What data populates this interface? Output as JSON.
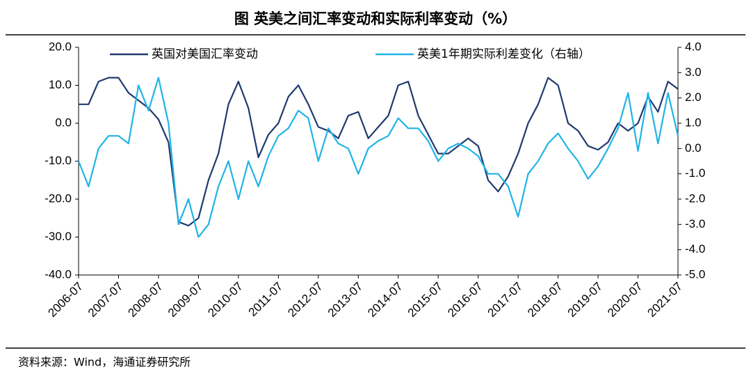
{
  "chart_data": {
    "type": "line",
    "title": "图  英美之间汇率变动和实际利率变动（%）",
    "source": "资料来源：Wind，海通证券研究所",
    "legend": "top",
    "x": [
      "2006-07",
      "2006-10",
      "2007-01",
      "2007-04",
      "2007-07",
      "2007-10",
      "2008-01",
      "2008-04",
      "2008-07",
      "2008-10",
      "2009-01",
      "2009-04",
      "2009-07",
      "2009-10",
      "2010-01",
      "2010-04",
      "2010-07",
      "2010-10",
      "2011-01",
      "2011-04",
      "2011-07",
      "2011-10",
      "2012-01",
      "2012-04",
      "2012-07",
      "2012-10",
      "2013-01",
      "2013-04",
      "2013-07",
      "2013-10",
      "2014-01",
      "2014-04",
      "2014-07",
      "2014-10",
      "2015-01",
      "2015-04",
      "2015-07",
      "2015-10",
      "2016-01",
      "2016-04",
      "2016-07",
      "2016-10",
      "2017-01",
      "2017-04",
      "2017-07",
      "2017-10",
      "2018-01",
      "2018-04",
      "2018-07",
      "2018-10",
      "2019-01",
      "2019-04",
      "2019-07",
      "2019-10",
      "2020-01",
      "2020-04",
      "2020-07",
      "2020-10",
      "2021-01",
      "2021-04",
      "2021-07"
    ],
    "xlim": [
      "2006-07",
      "2021-07"
    ],
    "xticks": [
      "2006-07",
      "2007-07",
      "2008-07",
      "2009-07",
      "2010-07",
      "2011-07",
      "2012-07",
      "2013-07",
      "2014-07",
      "2015-07",
      "2016-07",
      "2017-07",
      "2018-07",
      "2019-07",
      "2020-07",
      "2021-07"
    ],
    "ylim": [
      -40,
      20
    ],
    "yticks": [
      {
        "value": -40,
        "label": "-40.0"
      },
      {
        "value": -30,
        "label": "-30.0"
      },
      {
        "value": -20,
        "label": "-20.0"
      },
      {
        "value": -10,
        "label": "-10.0"
      },
      {
        "value": 0,
        "label": "0.0"
      },
      {
        "value": 10,
        "label": "10.0"
      },
      {
        "value": 20,
        "label": "20.0"
      }
    ],
    "y2lim": [
      -5,
      4
    ],
    "y2ticks": [
      {
        "value": -5,
        "label": "-5.0"
      },
      {
        "value": -4,
        "label": "-4.0"
      },
      {
        "value": -3,
        "label": "-3.0"
      },
      {
        "value": -2,
        "label": "-2.0"
      },
      {
        "value": -1,
        "label": "-1.0"
      },
      {
        "value": 0,
        "label": "0.0"
      },
      {
        "value": 1,
        "label": "1.0"
      },
      {
        "value": 2,
        "label": "2.0"
      },
      {
        "value": 3,
        "label": "3.0"
      },
      {
        "value": 4,
        "label": "4.0"
      }
    ],
    "series": [
      {
        "name": "英国对美国汇率变动",
        "color": "#1f3a6e",
        "values": [
          5,
          5,
          11,
          12,
          12,
          8,
          6,
          4,
          1,
          -5,
          -26,
          -27,
          -25,
          -15,
          -8,
          5,
          11,
          4,
          -9,
          -3,
          0,
          7,
          10,
          5,
          -1,
          -2,
          -4,
          2,
          3,
          -4,
          -1,
          2,
          10,
          11,
          2,
          -3,
          -8,
          -8,
          -6,
          -4,
          -6,
          -15,
          -18,
          -14,
          -8,
          0,
          5,
          12,
          10,
          0,
          -2,
          -6,
          -7,
          -5,
          0,
          -2,
          0,
          7,
          3,
          11,
          9
        ]
      },
      {
        "name": "英美1年期实际利差变化（右轴）",
        "color": "#1fb4e6",
        "axis": "y2",
        "values": [
          -0.5,
          -1.5,
          0,
          0.5,
          0.5,
          0.2,
          2.5,
          1.5,
          2.8,
          1.0,
          -3.0,
          -2.0,
          -3.5,
          -3.0,
          -1.5,
          -0.5,
          -2.0,
          -0.5,
          -1.5,
          -0.3,
          0.5,
          0.8,
          1.5,
          1.2,
          -0.5,
          0.8,
          0.2,
          0,
          -1,
          0,
          0.3,
          0.5,
          1.2,
          0.8,
          0.8,
          0.3,
          -0.5,
          0,
          0.2,
          0,
          -0.3,
          -1.0,
          -1.0,
          -1.5,
          -2.7,
          -1.0,
          -0.5,
          0.2,
          0.6,
          0.0,
          -0.5,
          -1.2,
          -0.7,
          0.0,
          0.8,
          2.2,
          -0.1,
          2.2,
          0.2,
          2.2,
          0.5
        ]
      }
    ]
  }
}
